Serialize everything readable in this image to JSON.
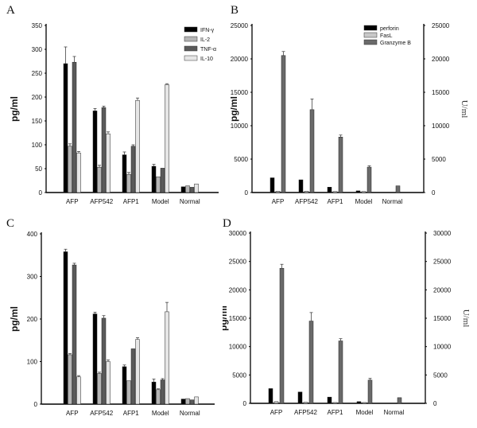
{
  "chart_data": [
    {
      "panel": "A",
      "type": "bar",
      "categories": [
        "AFP",
        "AFP542",
        "AFP1",
        "Model",
        "Normal"
      ],
      "series": [
        {
          "name": "IFN-γ",
          "values": [
            270,
            171,
            79,
            55,
            12
          ],
          "errors": [
            35,
            5,
            6,
            4,
            0
          ],
          "color": "#000000"
        },
        {
          "name": "IL-2",
          "values": [
            97,
            53,
            38,
            33,
            14
          ],
          "errors": [
            5,
            4,
            4,
            0,
            0
          ],
          "color": "#b5b5b5"
        },
        {
          "name": "TNF-α",
          "values": [
            273,
            178,
            97,
            51,
            11
          ],
          "errors": [
            12,
            3,
            3,
            0,
            0
          ],
          "color": "#5a5a5a"
        },
        {
          "name": "IL-10",
          "values": [
            83,
            123,
            193,
            226,
            18
          ],
          "errors": [
            3,
            4,
            5,
            2,
            0
          ],
          "color": "#e6e6e6"
        }
      ],
      "title": "",
      "xlabel": "",
      "ylabel": "pg/ml",
      "ylim": [
        0,
        350
      ],
      "yticks": [
        0,
        50,
        100,
        150,
        200,
        250,
        300,
        350
      ],
      "legend_position": "upper right",
      "grid": false
    },
    {
      "panel": "B",
      "type": "bar",
      "categories": [
        "AFP",
        "AFP542",
        "AFP1",
        "Model",
        "Normal"
      ],
      "series": [
        {
          "name": "perforin",
          "values": [
            2200,
            1900,
            800,
            250,
            0
          ],
          "errors": [
            0,
            0,
            0,
            0,
            0
          ],
          "color": "#000000"
        },
        {
          "name": "FasL",
          "values": [
            200,
            200,
            150,
            150,
            0
          ],
          "errors": [
            0,
            0,
            0,
            0,
            0
          ],
          "color": "#c8c8c8"
        },
        {
          "name": "Granzyme B",
          "values": [
            20500,
            12400,
            8300,
            3800,
            1000
          ],
          "errors": [
            600,
            1600,
            300,
            200,
            0
          ],
          "color": "#6a6a6a"
        }
      ],
      "title": "",
      "xlabel": "",
      "ylabel": "pg/ml",
      "ylabel_right": "U/ml",
      "ylim": [
        0,
        25000
      ],
      "yticks": [
        0,
        5000,
        10000,
        15000,
        20000,
        25000
      ],
      "legend_position": "upper right",
      "grid": false
    },
    {
      "panel": "C",
      "type": "bar",
      "categories": [
        "AFP",
        "AFP542",
        "AFP1",
        "Model",
        "Normal"
      ],
      "series": [
        {
          "name": "IFN-γ",
          "values": [
            358,
            212,
            88,
            52,
            12
          ],
          "errors": [
            6,
            4,
            4,
            7,
            0
          ],
          "color": "#000000"
        },
        {
          "name": "IL-2",
          "values": [
            116,
            72,
            55,
            34,
            13
          ],
          "errors": [
            3,
            3,
            0,
            2,
            0
          ],
          "color": "#b5b5b5"
        },
        {
          "name": "TNF-α",
          "values": [
            327,
            202,
            130,
            57,
            10
          ],
          "errors": [
            4,
            6,
            0,
            3,
            0
          ],
          "color": "#5a5a5a"
        },
        {
          "name": "IL-10",
          "values": [
            64,
            100,
            152,
            217,
            17
          ],
          "errors": [
            3,
            4,
            4,
            22,
            0
          ],
          "color": "#e6e6e6"
        }
      ],
      "title": "",
      "xlabel": "",
      "ylabel": "pg/ml",
      "ylim": [
        0,
        400
      ],
      "yticks": [
        0,
        100,
        200,
        300,
        400
      ],
      "grid": false
    },
    {
      "panel": "D",
      "type": "bar",
      "categories": [
        "AFP",
        "AFP542",
        "AFP1",
        "Model",
        "Normal"
      ],
      "series": [
        {
          "name": "perforin",
          "values": [
            2600,
            2000,
            1100,
            300,
            0
          ],
          "errors": [
            0,
            0,
            0,
            0,
            0
          ],
          "color": "#000000"
        },
        {
          "name": "FasL",
          "values": [
            300,
            200,
            150,
            150,
            0
          ],
          "errors": [
            0,
            0,
            0,
            0,
            0
          ],
          "color": "#c8c8c8"
        },
        {
          "name": "Granzyme B",
          "values": [
            23800,
            14500,
            11000,
            4100,
            1000
          ],
          "errors": [
            700,
            1500,
            400,
            300,
            0
          ],
          "color": "#6a6a6a"
        }
      ],
      "title": "",
      "xlabel": "",
      "ylabel": "pg/ml",
      "ylabel_right": "U/ml",
      "ylim": [
        0,
        30000
      ],
      "yticks": [
        0,
        5000,
        10000,
        15000,
        20000,
        25000,
        30000
      ],
      "grid": false
    }
  ],
  "panels": {
    "A": {
      "letter": "A"
    },
    "B": {
      "letter": "B"
    },
    "C": {
      "letter": "C"
    },
    "D": {
      "letter": "D"
    }
  }
}
